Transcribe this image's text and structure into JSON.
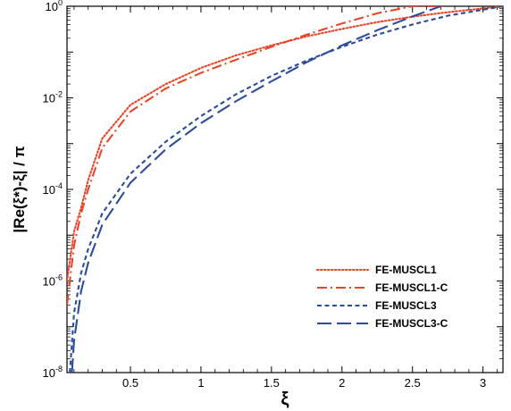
{
  "chart_data": {
    "type": "line",
    "title": "",
    "xlabel": "ξ",
    "ylabel": "|Re(ξ*)-ξ| / π",
    "xlim": [
      0.05,
      3.1416
    ],
    "ylim_log10": [
      -8,
      0
    ],
    "y_scale": "log",
    "x_ticks": [
      0.5,
      1,
      1.5,
      2,
      2.5,
      3
    ],
    "x_tick_labels": [
      "0.5",
      "1",
      "1.5",
      "2",
      "2.5",
      "3"
    ],
    "y_ticks": [
      {
        "base": "10",
        "exp": "-8"
      },
      {
        "base": "10",
        "exp": "-6"
      },
      {
        "base": "10",
        "exp": "-4"
      },
      {
        "base": "10",
        "exp": "-2"
      },
      {
        "base": "10",
        "exp": "0"
      }
    ],
    "legend_position": "bottom-right",
    "series": [
      {
        "name": "FE-MUSCL1",
        "color": "#e8462a",
        "dash": "dotted",
        "x": [
          0.05,
          0.1,
          0.15,
          0.2,
          0.3,
          0.5,
          0.75,
          1.0,
          1.25,
          1.5,
          1.75,
          2.0,
          2.25,
          2.5,
          2.75,
          3.1416
        ],
        "y": [
          1e-06,
          1.2e-05,
          4e-05,
          0.00016,
          0.0013,
          0.007,
          0.02,
          0.045,
          0.085,
          0.14,
          0.22,
          0.32,
          0.45,
          0.59,
          0.74,
          1.0
        ]
      },
      {
        "name": "FE-MUSCL1-C",
        "color": "#e8462a",
        "dash": "dashdot",
        "x": [
          0.05,
          0.1,
          0.15,
          0.2,
          0.3,
          0.5,
          0.75,
          1.0,
          1.25,
          1.5,
          1.75,
          2.0,
          2.25,
          2.5,
          2.74
        ],
        "y": [
          3e-07,
          6e-06,
          3e-05,
          0.0001,
          0.0008,
          0.005,
          0.016,
          0.035,
          0.068,
          0.13,
          0.24,
          0.42,
          0.7,
          1.0,
          1.0
        ]
      },
      {
        "name": "FE-MUSCL3",
        "color": "#2c4c9a",
        "dash": "dashed",
        "x": [
          0.07,
          0.1,
          0.15,
          0.2,
          0.3,
          0.5,
          0.75,
          1.0,
          1.25,
          1.5,
          1.75,
          2.0,
          2.25,
          2.5,
          2.75,
          3.1416
        ],
        "y": [
          1e-08,
          2e-07,
          1.5e-06,
          5e-06,
          3e-05,
          0.00022,
          0.0011,
          0.004,
          0.012,
          0.03,
          0.065,
          0.13,
          0.24,
          0.4,
          0.62,
          1.0
        ]
      },
      {
        "name": "FE-MUSCL3-C",
        "color": "#2c4c9a",
        "dash": "longdash",
        "x": [
          0.085,
          0.1,
          0.15,
          0.2,
          0.3,
          0.5,
          0.75,
          1.0,
          1.25,
          1.5,
          1.75,
          2.0,
          2.25,
          2.5,
          2.7
        ],
        "y": [
          1e-08,
          5e-08,
          6e-07,
          2.5e-06,
          1.7e-05,
          0.00014,
          0.00075,
          0.0028,
          0.0085,
          0.023,
          0.06,
          0.14,
          0.3,
          0.6,
          1.0
        ]
      }
    ]
  }
}
